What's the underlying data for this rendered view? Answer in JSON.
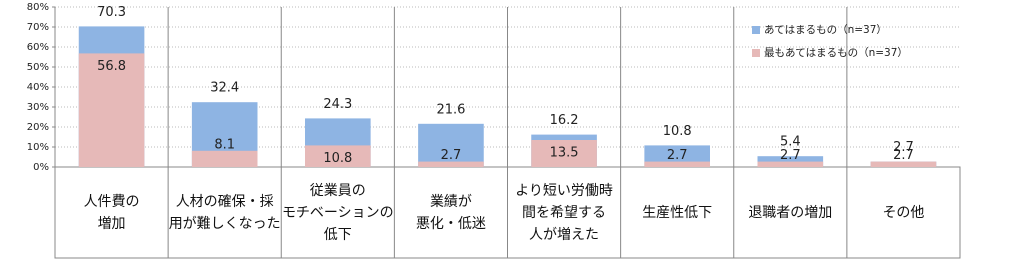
{
  "chart_data": {
    "type": "overlaid-bar",
    "categories": [
      "人件費の\n増加",
      "人材の確保・採\n用が難しくなった",
      "従業員の\nモチベーションの\n低下",
      "業績が\n悪化・低迷",
      "より短い労働時\n間を希望する\n人が増えた",
      "生産性低下",
      "退職者の増加",
      "その他"
    ],
    "series": [
      {
        "name": "あてはまるもの（n=37）",
        "color": "#8eb4e3",
        "values": [
          70.3,
          32.4,
          24.3,
          21.6,
          16.2,
          10.8,
          5.4,
          2.7
        ]
      },
      {
        "name": "最もあてはまるもの（n=37）",
        "color": "#e6b9b8",
        "values": [
          56.8,
          8.1,
          10.8,
          2.7,
          13.5,
          2.7,
          2.7,
          2.7
        ]
      }
    ],
    "ylim": [
      0,
      80
    ],
    "yticks": [
      {
        "value": 0,
        "label": "0%"
      },
      {
        "value": 10,
        "label": "10%"
      },
      {
        "value": 20,
        "label": "20%"
      },
      {
        "value": 30,
        "label": "30%"
      },
      {
        "value": 40,
        "label": "40%"
      },
      {
        "value": 50,
        "label": "50%"
      },
      {
        "value": 60,
        "label": "60%"
      },
      {
        "value": 70,
        "label": "70%"
      },
      {
        "value": 80,
        "label": "80%"
      }
    ],
    "grid": true,
    "legend": "upper right"
  }
}
